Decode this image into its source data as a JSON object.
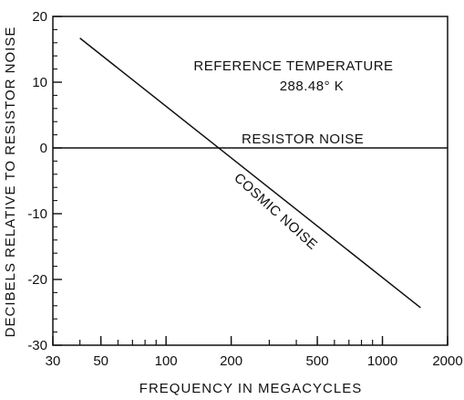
{
  "chart_data": {
    "type": "line",
    "title": "",
    "xlabel": "FREQUENCY IN MEGACYCLES",
    "ylabel": "DECIBELS RELATIVE TO RESISTOR NOISE",
    "x_scale": "log",
    "xlim": [
      30,
      2000
    ],
    "ylim": [
      -30,
      20
    ],
    "x_ticks": [
      30,
      50,
      100,
      200,
      500,
      1000,
      2000
    ],
    "x_tick_labels": [
      "30",
      "50",
      "100",
      "200",
      "500",
      "1000",
      "2000"
    ],
    "y_ticks": [
      20,
      10,
      0,
      -10,
      -20,
      -30
    ],
    "y_tick_labels": [
      "20",
      "10",
      "0",
      "-10",
      "-20",
      "-30"
    ],
    "grid": false,
    "series": [
      {
        "name": "COSMIC NOISE",
        "x": [
          40,
          1500
        ],
        "y": [
          16.7,
          -24.3
        ]
      },
      {
        "name": "RESISTOR NOISE",
        "x": [
          30,
          2000
        ],
        "y": [
          0,
          0
        ]
      }
    ],
    "annotations": {
      "reference_line1": "REFERENCE TEMPERATURE",
      "reference_line2": "288.48° K",
      "resistor_label": "RESISTOR NOISE",
      "cosmic_label": "COSMIC NOISE"
    }
  }
}
